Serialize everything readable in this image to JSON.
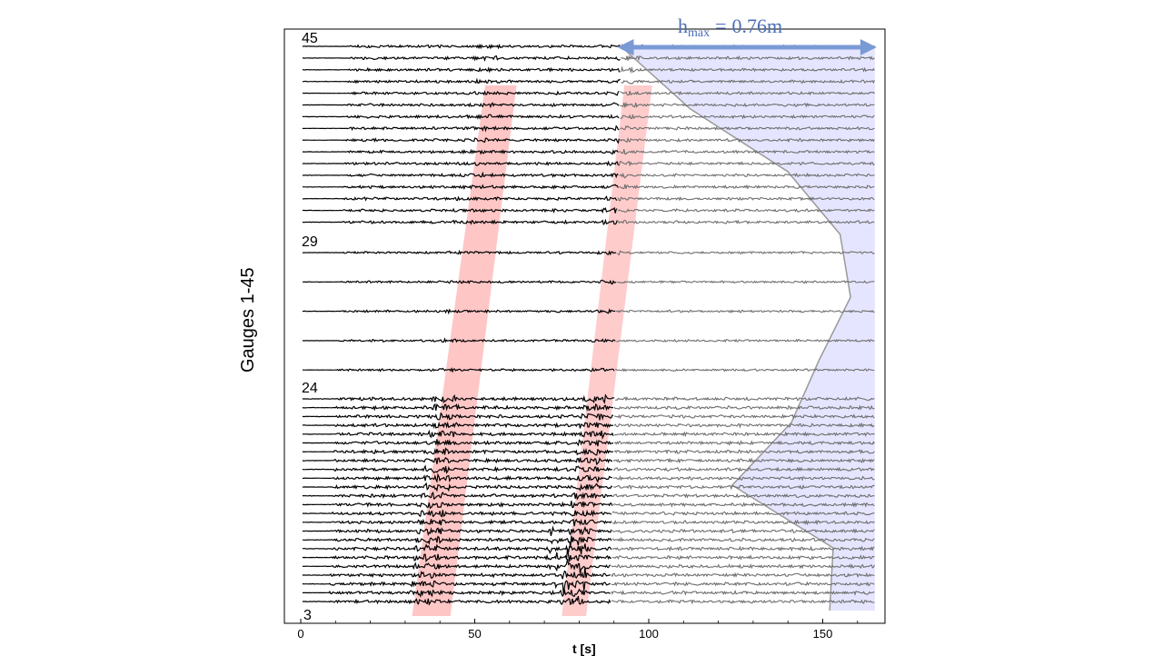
{
  "chart_data": {
    "type": "line",
    "title": "",
    "ylabel": "Gauges 1-45",
    "xlabel": "t [s]",
    "xlim": [
      0,
      166
    ],
    "xticks": [
      0,
      50,
      100,
      150
    ],
    "gauge_labels": [
      "45",
      "29",
      "24",
      "3"
    ],
    "annotation": {
      "h_symbol": "h",
      "subscript": "max",
      "equals": "=",
      "value": "0.76m"
    },
    "series_colors": {
      "recorded": "#000000",
      "faded": "#6e6e6e"
    },
    "highlight_colors": {
      "wave_bands": "#ff8080",
      "envelope_fill": "#dcdcff",
      "arrow": "#7a9ad6"
    },
    "wave_bands": [
      {
        "t_bottom": [
          32,
          43
        ],
        "t_top": [
          53,
          62
        ]
      },
      {
        "t_bottom": [
          75,
          82
        ],
        "t_top": [
          93,
          101
        ]
      }
    ],
    "fade_start_t": [
      89,
      92
    ],
    "envelope_t": [
      [
        90,
        92
      ],
      [
        99,
        112
      ],
      [
        130,
        140
      ],
      [
        150,
        155
      ],
      [
        154,
        158
      ],
      [
        153,
        149
      ],
      [
        146,
        141
      ],
      [
        125,
        124
      ],
      [
        132,
        153
      ],
      [
        150,
        152
      ]
    ]
  }
}
